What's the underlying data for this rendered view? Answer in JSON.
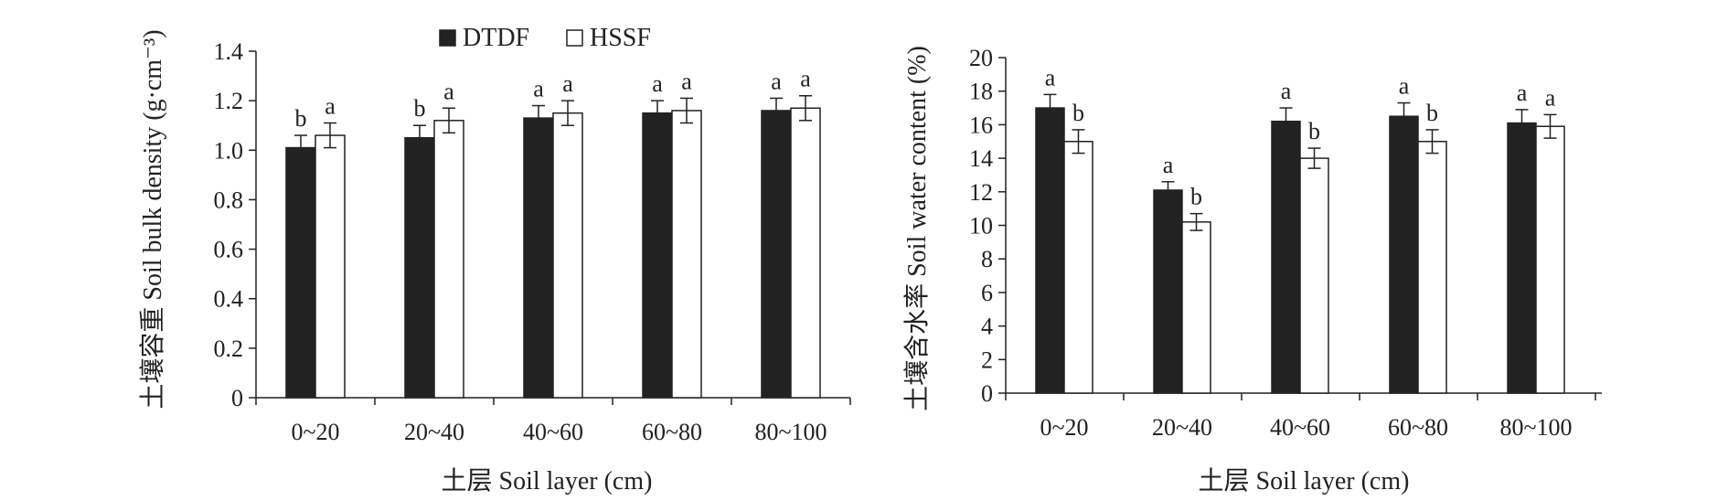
{
  "legend": {
    "items": [
      {
        "label": "DTDF",
        "color": "#222222"
      },
      {
        "label": "HSSF",
        "color": "#ffffff"
      }
    ]
  },
  "chart_data": [
    {
      "type": "bar",
      "categories": [
        "0~20",
        "20~40",
        "40~60",
        "60~80",
        "80~100"
      ],
      "series": [
        {
          "name": "DTDF",
          "values": [
            1.01,
            1.05,
            1.13,
            1.15,
            1.16
          ],
          "errors": [
            0.05,
            0.05,
            0.05,
            0.05,
            0.05
          ],
          "significance": [
            "b",
            "b",
            "a",
            "a",
            "a"
          ],
          "color": "#222222"
        },
        {
          "name": "HSSF",
          "values": [
            1.06,
            1.12,
            1.15,
            1.16,
            1.17
          ],
          "errors": [
            0.05,
            0.05,
            0.05,
            0.05,
            0.05
          ],
          "significance": [
            "a",
            "a",
            "a",
            "a",
            "a"
          ],
          "color": "#ffffff"
        }
      ],
      "ylim": [
        0,
        1.4
      ],
      "yticks": [
        "0",
        "0.2",
        "0.4",
        "0.6",
        "0.8",
        "1.0",
        "1.2",
        "1.4"
      ],
      "ytick_values": [
        0,
        0.2,
        0.4,
        0.6,
        0.8,
        1.0,
        1.2,
        1.4
      ],
      "ylabel": "土壤容重 Soil bulk density (g·cm⁻³)",
      "xlabel": "土层 Soil layer (cm)",
      "legend_position": "top"
    },
    {
      "type": "bar",
      "categories": [
        "0~20",
        "20~40",
        "40~60",
        "60~80",
        "80~100"
      ],
      "series": [
        {
          "name": "DTDF",
          "values": [
            17.0,
            12.1,
            16.2,
            16.5,
            16.1
          ],
          "errors": [
            0.8,
            0.5,
            0.8,
            0.8,
            0.8
          ],
          "significance": [
            "a",
            "a",
            "a",
            "a",
            "a"
          ],
          "color": "#222222"
        },
        {
          "name": "HSSF",
          "values": [
            15.0,
            10.2,
            14.0,
            15.0,
            15.9
          ],
          "errors": [
            0.7,
            0.5,
            0.6,
            0.7,
            0.7
          ],
          "significance": [
            "b",
            "b",
            "b",
            "b",
            "a"
          ],
          "color": "#ffffff"
        }
      ],
      "ylim": [
        0,
        20
      ],
      "yticks": [
        "0",
        "2",
        "4",
        "6",
        "8",
        "10",
        "12",
        "14",
        "16",
        "18",
        "20"
      ],
      "ytick_values": [
        0,
        2,
        4,
        6,
        8,
        10,
        12,
        14,
        16,
        18,
        20
      ],
      "ylabel": "土壤含水率 Soil water content (%)",
      "xlabel": "土层 Soil layer (cm)"
    }
  ]
}
